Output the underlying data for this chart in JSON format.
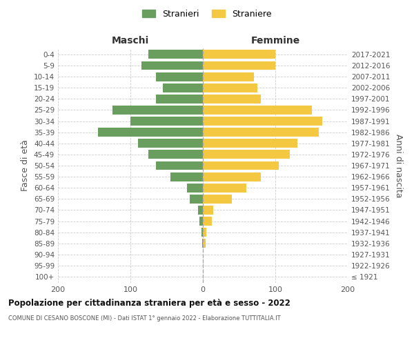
{
  "age_groups": [
    "100+",
    "95-99",
    "90-94",
    "85-89",
    "80-84",
    "75-79",
    "70-74",
    "65-69",
    "60-64",
    "55-59",
    "50-54",
    "45-49",
    "40-44",
    "35-39",
    "30-34",
    "25-29",
    "20-24",
    "15-19",
    "10-14",
    "5-9",
    "0-4"
  ],
  "birth_years": [
    "≤ 1921",
    "1922-1926",
    "1927-1931",
    "1932-1936",
    "1937-1941",
    "1942-1946",
    "1947-1951",
    "1952-1956",
    "1957-1961",
    "1962-1966",
    "1967-1971",
    "1972-1976",
    "1977-1981",
    "1982-1986",
    "1987-1991",
    "1992-1996",
    "1997-2001",
    "2002-2006",
    "2007-2011",
    "2012-2016",
    "2017-2021"
  ],
  "maschi": [
    0,
    0,
    0,
    1,
    2,
    5,
    7,
    18,
    22,
    45,
    65,
    75,
    90,
    145,
    100,
    125,
    65,
    55,
    65,
    85,
    75
  ],
  "femmine": [
    0,
    0,
    0,
    4,
    5,
    12,
    14,
    40,
    60,
    80,
    105,
    120,
    130,
    160,
    165,
    150,
    80,
    75,
    70,
    100,
    100
  ],
  "color_maschi": "#6a9e5e",
  "color_femmine": "#f5c842",
  "title": "Popolazione per cittadinanza straniera per età e sesso - 2022",
  "subtitle": "COMUNE DI CESANO BOSCONE (MI) - Dati ISTAT 1° gennaio 2022 - Elaborazione TUTTITALIA.IT",
  "legend_maschi": "Stranieri",
  "legend_femmine": "Straniere",
  "header_left": "Maschi",
  "header_right": "Femmine",
  "ylabel_left": "Fasce di età",
  "ylabel_right": "Anni di nascita",
  "xlim": 200,
  "background_color": "#ffffff",
  "grid_color": "#cccccc"
}
